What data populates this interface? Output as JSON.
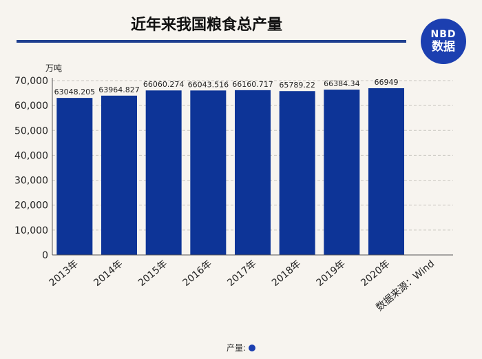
{
  "header": {
    "title": "近年来我国粮食总产量",
    "logo_line1": "NBD",
    "logo_line2": "数据"
  },
  "legend": {
    "label": "产量:"
  },
  "colors": {
    "bar": "#0d3497",
    "accent": "#1c3fb0"
  },
  "chart_data": {
    "type": "bar",
    "ylabel": "万吨",
    "ylim": [
      0,
      70000
    ],
    "yticks": [
      0,
      10000,
      20000,
      30000,
      40000,
      50000,
      60000,
      70000
    ],
    "ytick_labels": [
      "0",
      "10,000",
      "20,000",
      "30,000",
      "40,000",
      "50,000",
      "60,000",
      "70,000"
    ],
    "categories": [
      "2013年",
      "2014年",
      "2015年",
      "2016年",
      "2017年",
      "2018年",
      "2019年",
      "2020年",
      "数据来源：Wind"
    ],
    "series": [
      {
        "name": "产量",
        "values": [
          63048.205,
          63964.827,
          66060.274,
          66043.516,
          66160.717,
          65789.22,
          66384.34,
          66949,
          null
        ],
        "labels": [
          "63048.205",
          "63964.827",
          "66060.274",
          "66043.516",
          "66160.717",
          "65789.22",
          "66384.34",
          "66949",
          ""
        ]
      }
    ],
    "grid": true,
    "legend_position": "bottom"
  }
}
